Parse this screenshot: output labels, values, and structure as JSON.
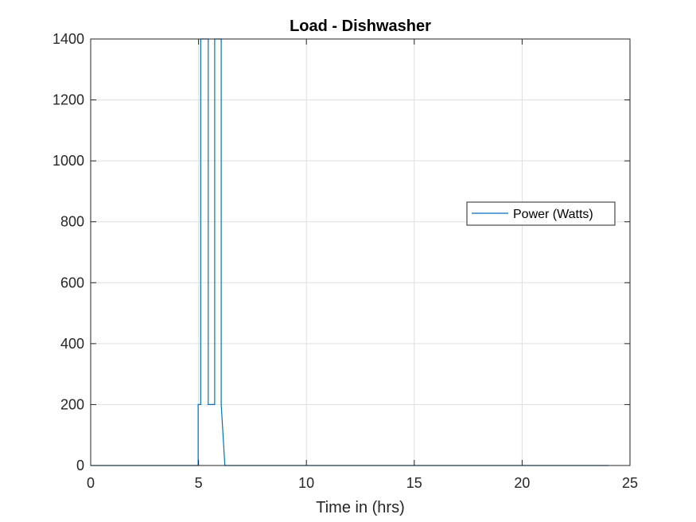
{
  "chart_data": {
    "type": "line",
    "title": "Load - Dishwasher",
    "xlabel": "Time in (hrs)",
    "ylabel": "",
    "xlim": [
      0,
      25
    ],
    "ylim": [
      0,
      1400
    ],
    "xticks": [
      0,
      5,
      10,
      15,
      20,
      25
    ],
    "yticks": [
      0,
      200,
      400,
      600,
      800,
      1000,
      1200,
      1400
    ],
    "grid": true,
    "legend_position": "right",
    "series": [
      {
        "name": "Power (Watts)",
        "color": "#0072BD",
        "x": [
          0,
          4.98,
          4.98,
          5.1,
          5.1,
          5.15,
          5.15,
          5.45,
          5.45,
          5.6,
          5.6,
          5.75,
          5.75,
          5.82,
          5.82,
          6.05,
          6.05,
          6.22,
          6.22,
          24
        ],
        "y": [
          0,
          0,
          200,
          200,
          1400,
          1400,
          1400,
          1400,
          200,
          200,
          200,
          200,
          1400,
          1400,
          1400,
          1400,
          200,
          0,
          0,
          0
        ]
      }
    ]
  }
}
